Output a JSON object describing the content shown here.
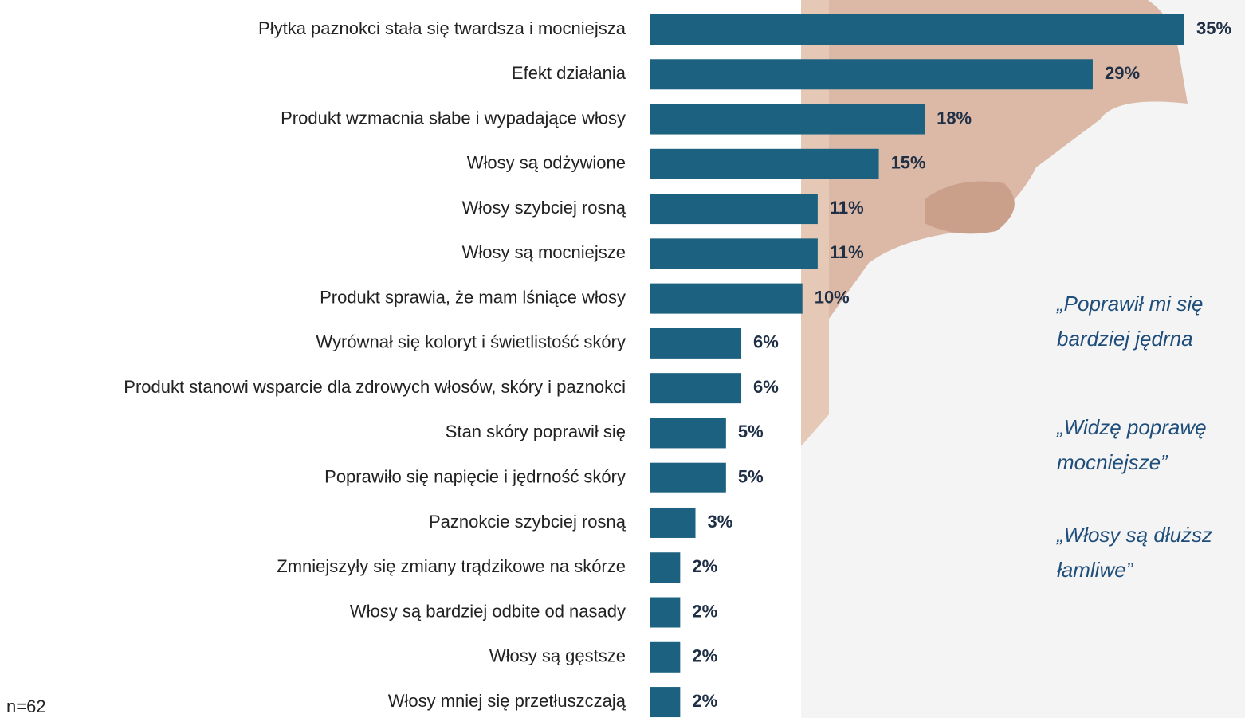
{
  "chart_data": {
    "type": "bar",
    "orientation": "horizontal",
    "color": "#1c6280",
    "categories": [
      "Płytka paznokci stała się twardsza i mocniejsza",
      "Efekt działania",
      "Produkt wzmacnia słabe i wypadające włosy",
      "Włosy są odżywione",
      "Włosy szybciej rosną",
      "Włosy są mocniejsze",
      "Produkt sprawia, że mam lśniące włosy",
      "Wyrównał się koloryt i świetlistość skóry",
      "Produkt stanowi wsparcie dla zdrowych włosów, skóry i paznokci",
      "Stan skóry poprawił się",
      "Poprawiło się napięcie i jędrność skóry",
      "Paznokcie szybciej rosną",
      "Zmniejszyły się zmiany trądzikowe na skórze",
      "Włosy są bardziej odbite od nasady",
      "Włosy są gęstsze",
      "Włosy mniej się przetłuszczają"
    ],
    "values": [
      35,
      29,
      18,
      15,
      11,
      11,
      10,
      6,
      6,
      5,
      5,
      3,
      2,
      2,
      2,
      2
    ],
    "value_labels": [
      "35%",
      "29%",
      "18%",
      "15%",
      "11%",
      "11%",
      "10%",
      "6%",
      "6%",
      "5%",
      "5%",
      "3%",
      "2%",
      "2%",
      "2%",
      "2%"
    ]
  },
  "note": "n=62",
  "quotes": [
    [
      "„Poprawił mi się",
      "bardziej jędrna"
    ],
    [
      "„Widzę poprawę",
      "mocniejsze”"
    ],
    [
      "„Włosy są dłuższ",
      "łamliwe”"
    ]
  ]
}
